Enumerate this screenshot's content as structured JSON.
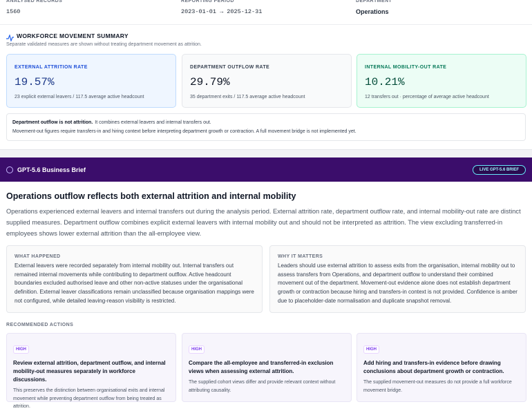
{
  "meta": [
    {
      "label": "ANALYSED RECORDS",
      "value": "1560"
    },
    {
      "label": "REPORTING PERIOD",
      "value": "2023-01-01 → 2025-12-31"
    },
    {
      "label": "DEPARTMENT",
      "value": "Operations"
    }
  ],
  "summary": {
    "title": "WORKFORCE MOVEMENT SUMMARY",
    "subtitle": "Separate validated measures are shown without treating department movement as attrition.",
    "cards": [
      {
        "label": "EXTERNAL ATTRITION RATE",
        "value": "19.57%",
        "detail": "23 explicit external leavers / 117.5 average active headcount"
      },
      {
        "label": "DEPARTMENT OUTFLOW RATE",
        "value": "29.79%",
        "detail": "35 department exits / 117.5 average active headcount"
      },
      {
        "label": "INTERNAL MOBILITY-OUT RATE",
        "value": "10.21%",
        "detail": "12 transfers out · percentage of average active headcount"
      }
    ],
    "note": {
      "lead": "Department outflow is not attrition.",
      "text": "It combines external leavers and internal transfers out.",
      "detail": "Movement-out figures require transfers-in and hiring context before interpreting department growth or contraction. A full movement bridge is not implemented yet."
    }
  },
  "brief": {
    "title": "GPT-5.6 Business Brief",
    "badge": "LIVE GPT-5.6 BRIEF",
    "heading": "Operations outflow reflects both external attrition and internal mobility",
    "summary": "Operations experienced external leavers and internal transfers out during the analysis period. External attrition rate, department outflow rate, and internal mobility-out rate are distinct supplied measures. Department outflow combines explicit external leavers with internal mobility out and should not be interpreted as attrition. The view excluding transferred-in employees shows lower external attrition than the all-employee view.",
    "panels": [
      {
        "label": "WHAT HAPPENED",
        "text": "External leavers were recorded separately from internal mobility out. Internal transfers out remained internal movements while contributing to department outflow. Active headcount boundaries excluded authorised leave and other non-active statuses under the organisational definition. External leaver classifications remain unclassified because organisation mappings were not configured, while detailed leaving-reason visibility is restricted."
      },
      {
        "label": "WHY IT MATTERS",
        "text": "Leaders should use external attrition to assess exits from the organisation, internal mobility out to assess transfers from Operations, and department outflow to understand their combined movement out of the department. Movement-out evidence alone does not establish department growth or contraction because hiring and transfers-in context is not provided. Confidence is amber due to placeholder-date normalisation and duplicate snapshot removal."
      }
    ],
    "actions_title": "RECOMMENDED ACTIONS",
    "actions": [
      {
        "priority": "HIGH",
        "title": "Review external attrition, department outflow, and internal mobility-out measures separately in workforce discussions.",
        "text": "This preserves the distinction between organisational exits and internal movement while preventing department outflow from being treated as attrition."
      },
      {
        "priority": "HIGH",
        "title": "Compare the all-employee and transferred-in exclusion views when assessing external attrition.",
        "text": "The supplied cohort views differ and provide relevant context without attributing causality."
      },
      {
        "priority": "HIGH",
        "title": "Add hiring and transfers-in evidence before drawing conclusions about department growth or contraction.",
        "text": "The supplied movement-out measures do not provide a full workforce movement bridge."
      }
    ]
  }
}
